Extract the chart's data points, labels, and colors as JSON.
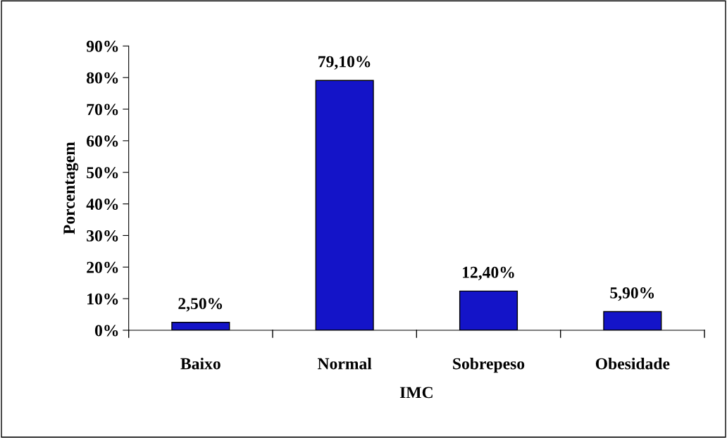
{
  "chart_data": {
    "type": "bar",
    "xlabel": "IMC",
    "ylabel": "Porcentagem",
    "categories": [
      "Baixo",
      "Normal",
      "Sobrepeso",
      "Obesidade"
    ],
    "values": [
      2.5,
      79.1,
      12.4,
      5.9
    ],
    "value_labels": [
      "2,50%",
      "79,10%",
      "12,40%",
      "5,90%"
    ],
    "color": "#1414c8",
    "ylim": [
      0,
      90
    ],
    "yticks": [
      {
        "value": 0,
        "label": "0%"
      },
      {
        "value": 10,
        "label": "10%"
      },
      {
        "value": 20,
        "label": "20%"
      },
      {
        "value": 30,
        "label": "30%"
      },
      {
        "value": 40,
        "label": "40%"
      },
      {
        "value": 50,
        "label": "50%"
      },
      {
        "value": 60,
        "label": "60%"
      },
      {
        "value": 70,
        "label": "70%"
      },
      {
        "value": 80,
        "label": "80%"
      },
      {
        "value": 90,
        "label": "90%"
      }
    ],
    "grid": false,
    "legend": false
  }
}
